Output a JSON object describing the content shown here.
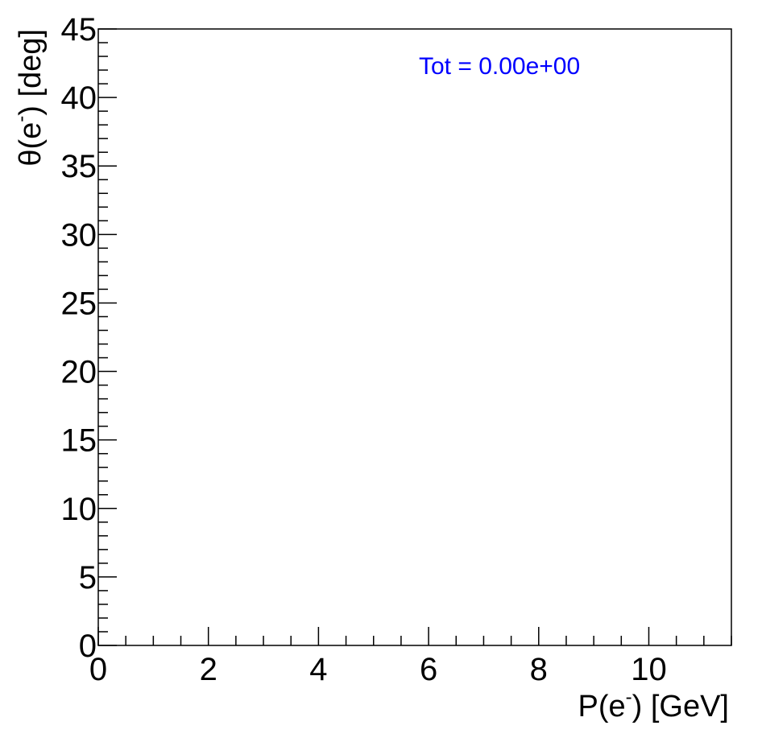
{
  "chart_data": {
    "type": "scatter",
    "title": "",
    "annotation": "Tot = 0.00e+00",
    "annotation_color": "#0000ff",
    "xlabel": {
      "pre": "P(e",
      "sup": "-",
      "post": ") [GeV]"
    },
    "ylabel": {
      "pre": "θ(e",
      "sup": "-",
      "post": ") [deg]"
    },
    "xlim": [
      0,
      11.5
    ],
    "ylim": [
      0,
      45
    ],
    "xticks": [
      0,
      2,
      4,
      6,
      8,
      10
    ],
    "yticks": [
      0,
      5,
      10,
      15,
      20,
      25,
      30,
      35,
      40,
      45
    ],
    "x_minor_step": 0.5,
    "y_minor_step": 1,
    "grid": false,
    "points": []
  }
}
